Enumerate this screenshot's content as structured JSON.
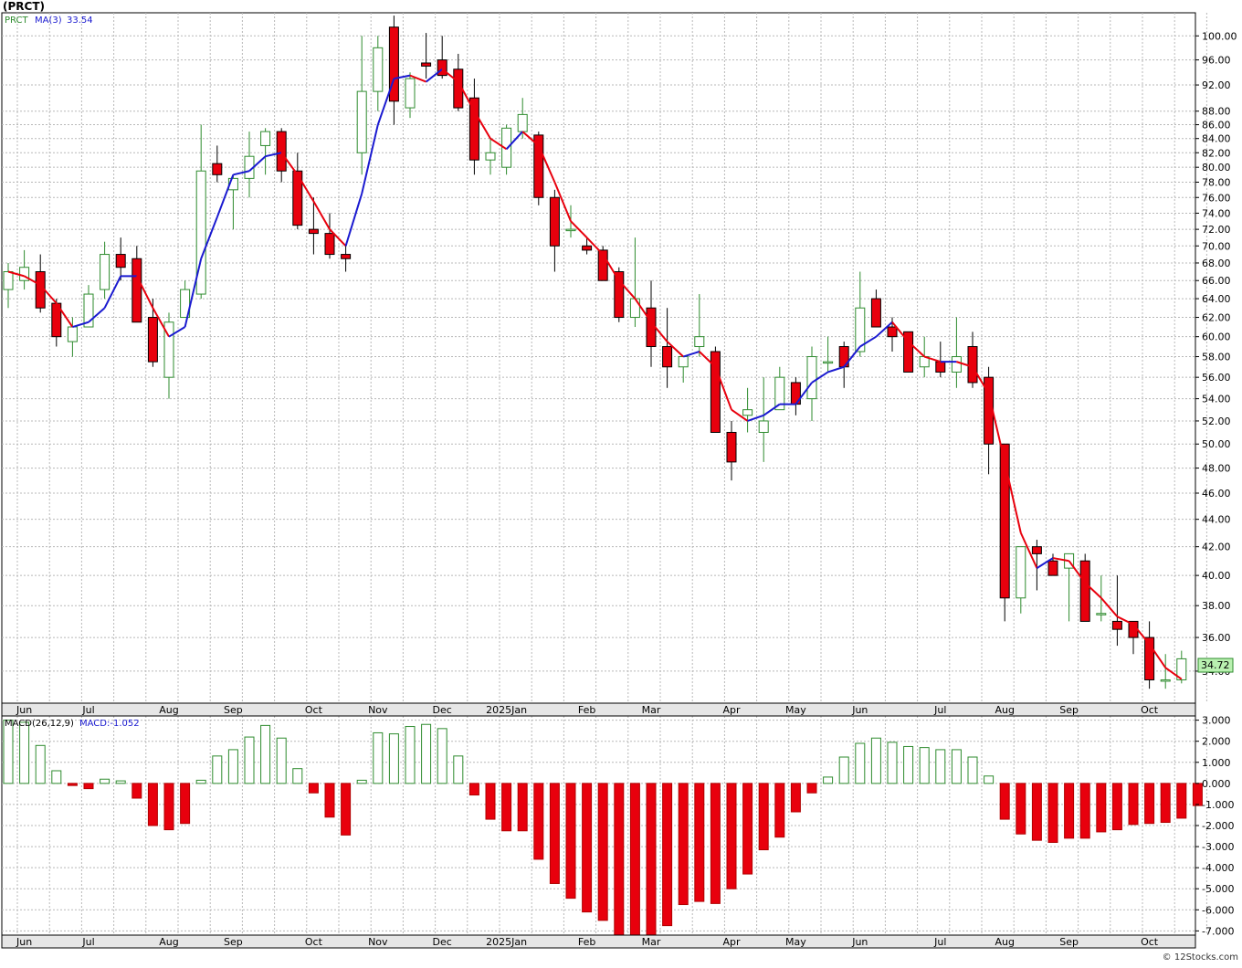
{
  "title": "(PRCT)",
  "footer": "© 12Stocks.com",
  "price_panel": {
    "symbol_label": "PRCT",
    "ma_label": "MA(3)",
    "ma_value": "33.54",
    "last_price": "34.72"
  },
  "macd_panel": {
    "label": "MACD(26,12,9)",
    "value_label": "MACD:-1.052"
  },
  "colors": {
    "up_candle": "#2e8b2e",
    "down_candle": "#e8000d",
    "ma_up": "#1a1ad0",
    "ma_down": "#e8000d",
    "macd_pos": "#2e8b2e",
    "macd_neg": "#e8000d",
    "grid": "#b8b8b8",
    "price_box": "#b9f0b0"
  },
  "chart_data": [
    {
      "type": "candlestick",
      "y_scale": "log",
      "ylim": [
        32.2,
        104
      ],
      "yticks": [
        "100.00",
        "96.00",
        "92.00",
        "88.00",
        "86.00",
        "84.00",
        "82.00",
        "80.00",
        "78.00",
        "76.00",
        "74.00",
        "72.00",
        "70.00",
        "68.00",
        "66.00",
        "64.00",
        "62.00",
        "60.00",
        "58.00",
        "56.00",
        "54.00",
        "52.00",
        "50.00",
        "48.00",
        "46.00",
        "44.00",
        "42.00",
        "40.00",
        "38.00",
        "36.00",
        "34.00"
      ],
      "x_labels": [
        "Jun",
        "Jul",
        "Aug",
        "Sep",
        "Oct",
        "Nov",
        "Dec",
        "2025Jan",
        "Feb",
        "Mar",
        "Apr",
        "May",
        "Jun",
        "Jul",
        "Aug",
        "Sep",
        "Oct"
      ],
      "x_label_weeks": [
        1,
        5,
        10,
        14,
        19,
        23,
        27,
        31,
        36,
        40,
        45,
        49,
        53,
        58,
        62,
        66,
        71
      ],
      "grid": true,
      "ohlc": [
        [
          65,
          68,
          63,
          67
        ],
        [
          66,
          69.5,
          65,
          67.5
        ],
        [
          67,
          69,
          62.5,
          63
        ],
        [
          63.5,
          64,
          59,
          60
        ],
        [
          59.5,
          62,
          58,
          61
        ],
        [
          61,
          65.5,
          61,
          64.5
        ],
        [
          65,
          70.5,
          64,
          69
        ],
        [
          69,
          71,
          66,
          67.5
        ],
        [
          68.5,
          70,
          61.5,
          61.5
        ],
        [
          62,
          64,
          57,
          57.5
        ],
        [
          56,
          62.5,
          54,
          61.5
        ],
        [
          62,
          66,
          62,
          65
        ],
        [
          64.5,
          86,
          64,
          79.5
        ],
        [
          80.5,
          83,
          78,
          79
        ],
        [
          77,
          79,
          72,
          78.5
        ],
        [
          78.5,
          85,
          76,
          81.5
        ],
        [
          83,
          85.5,
          79,
          85
        ],
        [
          85,
          85.5,
          78,
          79.5
        ],
        [
          79.5,
          82,
          72,
          72.5
        ],
        [
          72,
          76,
          69,
          71.5
        ],
        [
          71.5,
          74,
          68.5,
          69
        ],
        [
          69,
          70,
          67,
          68.5
        ],
        [
          82,
          100,
          79,
          91
        ],
        [
          91,
          100,
          88,
          98
        ],
        [
          101.5,
          103.5,
          86,
          89.5
        ],
        [
          88.5,
          94,
          87,
          93
        ],
        [
          95.5,
          100.5,
          93,
          95
        ],
        [
          96,
          100,
          93,
          93.5
        ],
        [
          94.5,
          97,
          88,
          88.5
        ],
        [
          90,
          93,
          79,
          81
        ],
        [
          81,
          84,
          79,
          82
        ],
        [
          80,
          86,
          79,
          85.5
        ],
        [
          85,
          90,
          84,
          87.5
        ],
        [
          84.5,
          85,
          75,
          76
        ],
        [
          76,
          77,
          67,
          70
        ],
        [
          72,
          75,
          71,
          72
        ],
        [
          70,
          71,
          69,
          69.5
        ],
        [
          69.5,
          70,
          66,
          66
        ],
        [
          67,
          67.5,
          61.5,
          62
        ],
        [
          62,
          71,
          61,
          64
        ],
        [
          63,
          66,
          57,
          59
        ],
        [
          59,
          63,
          55,
          57
        ],
        [
          57,
          58,
          55.5,
          58
        ],
        [
          59,
          64.5,
          58,
          60
        ],
        [
          58.5,
          59,
          51,
          51
        ],
        [
          51,
          52,
          47,
          48.5
        ],
        [
          52.5,
          55,
          51,
          53
        ],
        [
          51,
          56,
          48.5,
          52
        ],
        [
          53,
          57,
          53,
          56
        ],
        [
          55.5,
          56,
          52.5,
          53.5
        ],
        [
          54,
          59,
          52,
          58
        ],
        [
          57.5,
          60,
          56.5,
          57.5
        ],
        [
          59,
          59.5,
          55,
          57
        ],
        [
          58.5,
          67,
          58,
          63
        ],
        [
          64,
          65,
          61,
          61
        ],
        [
          61,
          62,
          58.5,
          60
        ],
        [
          60.5,
          60,
          56.5,
          56.5
        ],
        [
          57,
          60,
          56,
          58
        ],
        [
          57.5,
          59.5,
          56,
          56.5
        ],
        [
          56.5,
          62,
          55,
          58
        ],
        [
          59,
          60.5,
          55,
          55.5
        ],
        [
          56,
          57,
          47.5,
          50
        ],
        [
          50,
          50,
          37,
          38.5
        ],
        [
          38.5,
          42,
          37.5,
          42
        ],
        [
          42,
          42.5,
          39,
          41.5
        ],
        [
          41,
          41.5,
          40,
          40
        ],
        [
          40.5,
          41.5,
          37,
          41.5
        ],
        [
          41,
          41.5,
          37,
          37
        ],
        [
          37.5,
          40,
          37,
          37.5
        ],
        [
          37,
          40,
          35.5,
          36.5
        ],
        [
          37,
          37,
          35,
          36
        ],
        [
          36,
          37,
          33,
          33.5
        ],
        [
          33.5,
          35,
          33,
          33.5
        ],
        [
          33.5,
          35.2,
          33.3,
          34.72
        ]
      ],
      "ma3": [
        67,
        66.5,
        65.5,
        63.5,
        61,
        61.5,
        63,
        66.5,
        66.5,
        63,
        60,
        61,
        68.5,
        73.5,
        79,
        79.5,
        81.5,
        82,
        79,
        75.5,
        72,
        70,
        76.5,
        86,
        93,
        93.5,
        92.5,
        94.5,
        92.5,
        88,
        84,
        82.5,
        85,
        83,
        78,
        73,
        71,
        69,
        66,
        64,
        61.5,
        59.5,
        58,
        58.5,
        57,
        53,
        52,
        52.5,
        53.5,
        53.5,
        55.5,
        56.5,
        57,
        59,
        60,
        61.5,
        59.5,
        58,
        57.5,
        57.5,
        57,
        54.5,
        48.5,
        43,
        40.5,
        41.2,
        41,
        39.5,
        38.5,
        37.3,
        36.8,
        35.6,
        34.2,
        33.54
      ]
    },
    {
      "type": "bar",
      "title": "",
      "ylim": [
        -7.2,
        3.2
      ],
      "yticks": [
        "3.000",
        "2.000",
        "1.000",
        "0.000",
        "-1.000",
        "-2.000",
        "-3.000",
        "-4.000",
        "-5.000",
        "-6.000",
        "-7.000"
      ],
      "x_labels": [
        "Jun",
        "Jul",
        "Aug",
        "Sep",
        "Oct",
        "Nov",
        "Dec",
        "2025Jan",
        "Feb",
        "Mar",
        "Apr",
        "May",
        "Jun",
        "Jul",
        "Aug",
        "Sep",
        "Oct"
      ],
      "values": [
        3.0,
        2.9,
        1.8,
        0.6,
        -0.1,
        -0.25,
        0.2,
        0.12,
        -0.7,
        -2.0,
        -2.2,
        -1.9,
        0.15,
        1.3,
        1.6,
        2.2,
        2.75,
        2.15,
        0.7,
        -0.45,
        -1.6,
        -2.45,
        0.15,
        2.4,
        2.35,
        2.7,
        2.8,
        2.6,
        1.3,
        -0.55,
        -1.7,
        -2.25,
        -2.25,
        -3.6,
        -4.75,
        -5.45,
        -6.1,
        -6.5,
        -7.2,
        -7.2,
        -7.2,
        -6.75,
        -5.75,
        -5.6,
        -5.7,
        -5.0,
        -4.3,
        -3.15,
        -2.55,
        -1.35,
        -0.45,
        0.3,
        1.25,
        1.9,
        2.15,
        1.95,
        1.75,
        1.7,
        1.6,
        1.6,
        1.25,
        0.35,
        -1.7,
        -2.4,
        -2.7,
        -2.8,
        -2.6,
        -2.6,
        -2.3,
        -2.2,
        -1.95,
        -1.9,
        -1.85,
        -1.65,
        -1.052
      ]
    }
  ]
}
